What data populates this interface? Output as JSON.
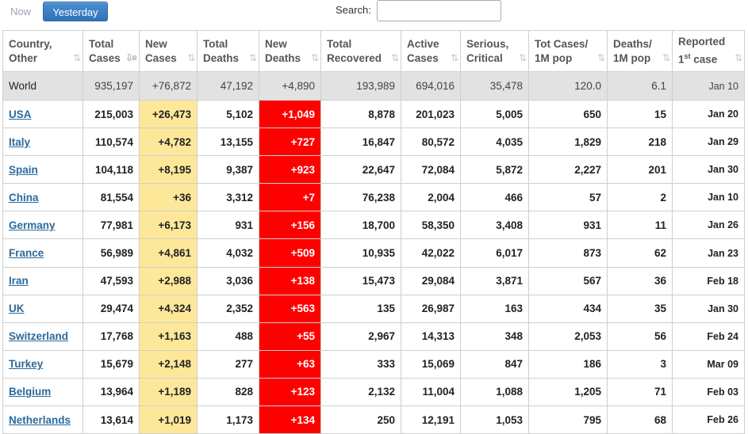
{
  "tabs": [
    {
      "label": "Now",
      "active": false
    },
    {
      "label": "Yesterday",
      "active": true
    }
  ],
  "search": {
    "label": "Search:",
    "value": ""
  },
  "columns": {
    "country": {
      "line1": "Country,",
      "line2": "Other"
    },
    "total_cases": {
      "line1": "Total",
      "line2": "Cases"
    },
    "new_cases": {
      "line1": "New",
      "line2": "Cases"
    },
    "total_deaths": {
      "line1": "Total",
      "line2": "Deaths"
    },
    "new_deaths": {
      "line1": "New",
      "line2": "Deaths"
    },
    "total_recovered": {
      "line1": "Total",
      "line2": "Recovered"
    },
    "active_cases": {
      "line1": "Active",
      "line2": "Cases"
    },
    "serious_critical": {
      "line1": "Serious,",
      "line2": "Critical"
    },
    "tot_cases_1m": {
      "line1": "Tot Cases/",
      "line2": "1M pop"
    },
    "deaths_1m": {
      "line1": "Deaths/",
      "line2": "1M pop"
    },
    "reported": {
      "line1": "Reported",
      "line2a": "1",
      "line2sup": "st",
      "line2b": " case"
    }
  },
  "world": {
    "country": "World",
    "total_cases": "935,197",
    "new_cases": "+76,872",
    "total_deaths": "47,192",
    "new_deaths": "+4,890",
    "total_recovered": "193,989",
    "active_cases": "694,016",
    "serious_critical": "35,478",
    "tot_cases_1m": "120.0",
    "deaths_1m": "6.1",
    "reported": "Jan 10"
  },
  "rows": [
    {
      "country": "USA",
      "total_cases": "215,003",
      "new_cases": "+26,473",
      "total_deaths": "5,102",
      "new_deaths": "+1,049",
      "total_recovered": "8,878",
      "active_cases": "201,023",
      "serious_critical": "5,005",
      "tot_cases_1m": "650",
      "deaths_1m": "15",
      "reported": "Jan 20"
    },
    {
      "country": "Italy",
      "total_cases": "110,574",
      "new_cases": "+4,782",
      "total_deaths": "13,155",
      "new_deaths": "+727",
      "total_recovered": "16,847",
      "active_cases": "80,572",
      "serious_critical": "4,035",
      "tot_cases_1m": "1,829",
      "deaths_1m": "218",
      "reported": "Jan 29"
    },
    {
      "country": "Spain",
      "total_cases": "104,118",
      "new_cases": "+8,195",
      "total_deaths": "9,387",
      "new_deaths": "+923",
      "total_recovered": "22,647",
      "active_cases": "72,084",
      "serious_critical": "5,872",
      "tot_cases_1m": "2,227",
      "deaths_1m": "201",
      "reported": "Jan 30"
    },
    {
      "country": "China",
      "total_cases": "81,554",
      "new_cases": "+36",
      "total_deaths": "3,312",
      "new_deaths": "+7",
      "total_recovered": "76,238",
      "active_cases": "2,004",
      "serious_critical": "466",
      "tot_cases_1m": "57",
      "deaths_1m": "2",
      "reported": "Jan 10"
    },
    {
      "country": "Germany",
      "total_cases": "77,981",
      "new_cases": "+6,173",
      "total_deaths": "931",
      "new_deaths": "+156",
      "total_recovered": "18,700",
      "active_cases": "58,350",
      "serious_critical": "3,408",
      "tot_cases_1m": "931",
      "deaths_1m": "11",
      "reported": "Jan 26"
    },
    {
      "country": "France",
      "total_cases": "56,989",
      "new_cases": "+4,861",
      "total_deaths": "4,032",
      "new_deaths": "+509",
      "total_recovered": "10,935",
      "active_cases": "42,022",
      "serious_critical": "6,017",
      "tot_cases_1m": "873",
      "deaths_1m": "62",
      "reported": "Jan 23"
    },
    {
      "country": "Iran",
      "total_cases": "47,593",
      "new_cases": "+2,988",
      "total_deaths": "3,036",
      "new_deaths": "+138",
      "total_recovered": "15,473",
      "active_cases": "29,084",
      "serious_critical": "3,871",
      "tot_cases_1m": "567",
      "deaths_1m": "36",
      "reported": "Feb 18"
    },
    {
      "country": "UK",
      "total_cases": "29,474",
      "new_cases": "+4,324",
      "total_deaths": "2,352",
      "new_deaths": "+563",
      "total_recovered": "135",
      "active_cases": "26,987",
      "serious_critical": "163",
      "tot_cases_1m": "434",
      "deaths_1m": "35",
      "reported": "Jan 30"
    },
    {
      "country": "Switzerland",
      "total_cases": "17,768",
      "new_cases": "+1,163",
      "total_deaths": "488",
      "new_deaths": "+55",
      "total_recovered": "2,967",
      "active_cases": "14,313",
      "serious_critical": "348",
      "tot_cases_1m": "2,053",
      "deaths_1m": "56",
      "reported": "Feb 24"
    },
    {
      "country": "Turkey",
      "total_cases": "15,679",
      "new_cases": "+2,148",
      "total_deaths": "277",
      "new_deaths": "+63",
      "total_recovered": "333",
      "active_cases": "15,069",
      "serious_critical": "847",
      "tot_cases_1m": "186",
      "deaths_1m": "3",
      "reported": "Mar 09"
    },
    {
      "country": "Belgium",
      "total_cases": "13,964",
      "new_cases": "+1,189",
      "total_deaths": "828",
      "new_deaths": "+123",
      "total_recovered": "2,132",
      "active_cases": "11,004",
      "serious_critical": "1,088",
      "tot_cases_1m": "1,205",
      "deaths_1m": "71",
      "reported": "Feb 03"
    },
    {
      "country": "Netherlands",
      "total_cases": "13,614",
      "new_cases": "+1,019",
      "total_deaths": "1,173",
      "new_deaths": "+134",
      "total_recovered": "250",
      "active_cases": "12,191",
      "serious_critical": "1,053",
      "tot_cases_1m": "795",
      "deaths_1m": "68",
      "reported": "Feb 26"
    }
  ],
  "colors": {
    "new_cases_highlight": "#fde89a",
    "new_deaths_highlight": "#ff0000",
    "link": "#2b6a9c",
    "world_row": "#e2e2e2",
    "active_tab": "#3a7fc2"
  },
  "icons": {
    "sort_default": "sort-icon",
    "sort_active": "sort-desc-icon"
  }
}
